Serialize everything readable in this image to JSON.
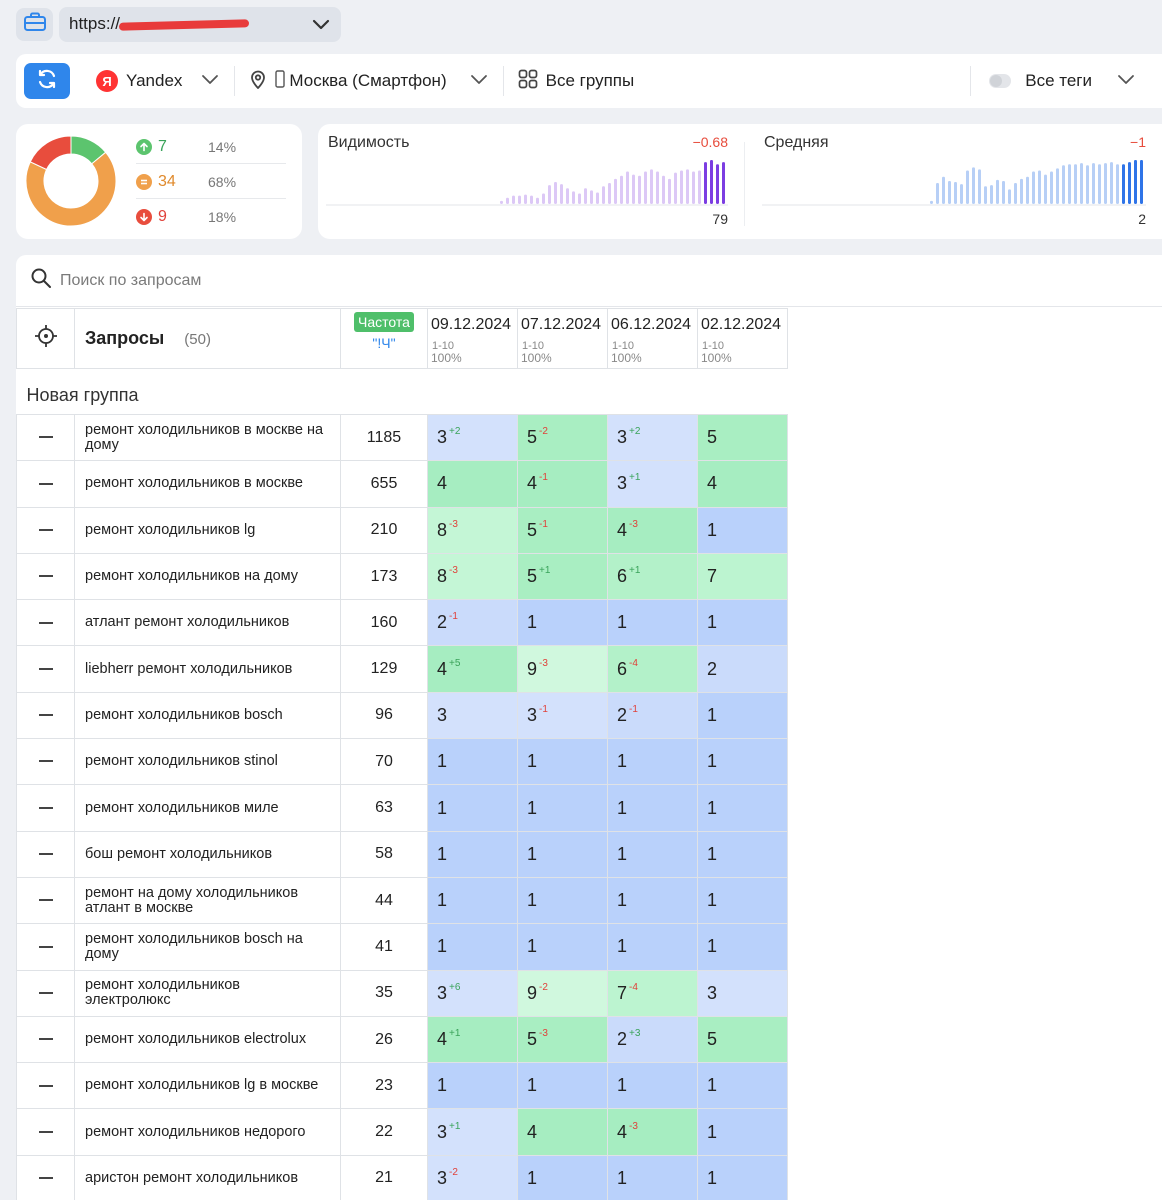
{
  "url": {
    "prefix": "https://",
    "suffix": ""
  },
  "filters": {
    "engine": "Yandex",
    "engine_logo": "Я",
    "region": "Москва (Смартфон)",
    "groups": "Все группы",
    "tags": "Все теги"
  },
  "summary": {
    "up": {
      "count": "7",
      "pct": "14%"
    },
    "same": {
      "count": "34",
      "pct": "68%"
    },
    "down": {
      "count": "9",
      "pct": "18%"
    },
    "colors": {
      "up": "#5cc46e",
      "same": "#f0a04b",
      "down": "#e84d3d"
    }
  },
  "visibility": {
    "title": "Видимость",
    "delta": "−0.68",
    "value": "79",
    "bars": [
      3,
      6,
      8,
      8,
      9,
      8,
      6,
      10,
      18,
      21,
      19,
      15,
      12,
      10,
      15,
      13,
      11,
      17,
      20,
      24,
      27,
      31,
      28,
      27,
      31,
      33,
      31,
      27,
      24,
      30,
      32,
      33,
      31,
      32,
      40,
      42,
      38,
      40
    ]
  },
  "average": {
    "title": "Средняя",
    "delta": "−1",
    "value": "2",
    "bars": [
      3,
      20,
      26,
      22,
      21,
      19,
      32,
      35,
      33,
      17,
      18,
      23,
      22,
      14,
      20,
      24,
      26,
      31,
      32,
      28,
      31,
      34,
      37,
      38,
      38,
      39,
      37,
      39,
      38,
      39,
      40,
      38,
      38,
      40,
      42,
      42
    ]
  },
  "search": {
    "placeholder": "Поиск по запросам"
  },
  "table": {
    "header": {
      "queries_label": "Запросы",
      "queries_count": "(50)",
      "freq_label": "Частота",
      "freq_sub": "\"!Ч\"",
      "dates": [
        {
          "date": "09.12.2024",
          "range": "1-10",
          "pct": "100%"
        },
        {
          "date": "07.12.2024",
          "range": "1-10",
          "pct": "100%"
        },
        {
          "date": "06.12.2024",
          "range": "1-10",
          "pct": "100%"
        },
        {
          "date": "02.12.2024",
          "range": "1-10",
          "pct": "100%"
        }
      ]
    },
    "group_name": "Новая группа",
    "rows": [
      {
        "q": "ремонт холодильников в москве на дому",
        "f": "1185",
        "p": [
          [
            "3",
            "+2"
          ],
          [
            "5",
            "-2"
          ],
          [
            "3",
            "+2"
          ],
          [
            "5",
            ""
          ]
        ]
      },
      {
        "q": "ремонт холодильников в москве",
        "f": "655",
        "p": [
          [
            "4",
            ""
          ],
          [
            "4",
            "-1"
          ],
          [
            "3",
            "+1"
          ],
          [
            "4",
            ""
          ]
        ]
      },
      {
        "q": "ремонт холодильников lg",
        "f": "210",
        "p": [
          [
            "8",
            "-3"
          ],
          [
            "5",
            "-1"
          ],
          [
            "4",
            "-3"
          ],
          [
            "1",
            ""
          ]
        ]
      },
      {
        "q": "ремонт холодильников на дому",
        "f": "173",
        "p": [
          [
            "8",
            "-3"
          ],
          [
            "5",
            "+1"
          ],
          [
            "6",
            "+1"
          ],
          [
            "7",
            ""
          ]
        ]
      },
      {
        "q": "атлант ремонт холодильников",
        "f": "160",
        "p": [
          [
            "2",
            "-1"
          ],
          [
            "1",
            ""
          ],
          [
            "1",
            ""
          ],
          [
            "1",
            ""
          ]
        ]
      },
      {
        "q": "liebherr ремонт холодильников",
        "f": "129",
        "p": [
          [
            "4",
            "+5"
          ],
          [
            "9",
            "-3"
          ],
          [
            "6",
            "-4"
          ],
          [
            "2",
            ""
          ]
        ]
      },
      {
        "q": "ремонт холодильников bosch",
        "f": "96",
        "p": [
          [
            "3",
            ""
          ],
          [
            "3",
            "-1"
          ],
          [
            "2",
            "-1"
          ],
          [
            "1",
            ""
          ]
        ]
      },
      {
        "q": "ремонт холодильников stinol",
        "f": "70",
        "p": [
          [
            "1",
            ""
          ],
          [
            "1",
            ""
          ],
          [
            "1",
            ""
          ],
          [
            "1",
            ""
          ]
        ]
      },
      {
        "q": "ремонт холодильников миле",
        "f": "63",
        "p": [
          [
            "1",
            ""
          ],
          [
            "1",
            ""
          ],
          [
            "1",
            ""
          ],
          [
            "1",
            ""
          ]
        ]
      },
      {
        "q": "бош ремонт холодильников",
        "f": "58",
        "p": [
          [
            "1",
            ""
          ],
          [
            "1",
            ""
          ],
          [
            "1",
            ""
          ],
          [
            "1",
            ""
          ]
        ]
      },
      {
        "q": "ремонт на дому холодильников атлант в москве",
        "f": "44",
        "p": [
          [
            "1",
            ""
          ],
          [
            "1",
            ""
          ],
          [
            "1",
            ""
          ],
          [
            "1",
            ""
          ]
        ]
      },
      {
        "q": "ремонт холодильников bosch на дому",
        "f": "41",
        "p": [
          [
            "1",
            ""
          ],
          [
            "1",
            ""
          ],
          [
            "1",
            ""
          ],
          [
            "1",
            ""
          ]
        ]
      },
      {
        "q": "ремонт холодильников электролюкс",
        "f": "35",
        "p": [
          [
            "3",
            "+6"
          ],
          [
            "9",
            "-2"
          ],
          [
            "7",
            "-4"
          ],
          [
            "3",
            ""
          ]
        ]
      },
      {
        "q": "ремонт холодильников electrolux",
        "f": "26",
        "p": [
          [
            "4",
            "+1"
          ],
          [
            "5",
            "-3"
          ],
          [
            "2",
            "+3"
          ],
          [
            "5",
            ""
          ]
        ]
      },
      {
        "q": "ремонт холодильников lg в москве",
        "f": "23",
        "p": [
          [
            "1",
            ""
          ],
          [
            "1",
            ""
          ],
          [
            "1",
            ""
          ],
          [
            "1",
            ""
          ]
        ]
      },
      {
        "q": "ремонт холодильников недорого",
        "f": "22",
        "p": [
          [
            "3",
            "+1"
          ],
          [
            "4",
            ""
          ],
          [
            "4",
            "-3"
          ],
          [
            "1",
            ""
          ]
        ]
      },
      {
        "q": "аристон ремонт холодильников",
        "f": "21",
        "p": [
          [
            "3",
            "-2"
          ],
          [
            "1",
            ""
          ],
          [
            "1",
            ""
          ],
          [
            "1",
            ""
          ]
        ]
      }
    ]
  }
}
